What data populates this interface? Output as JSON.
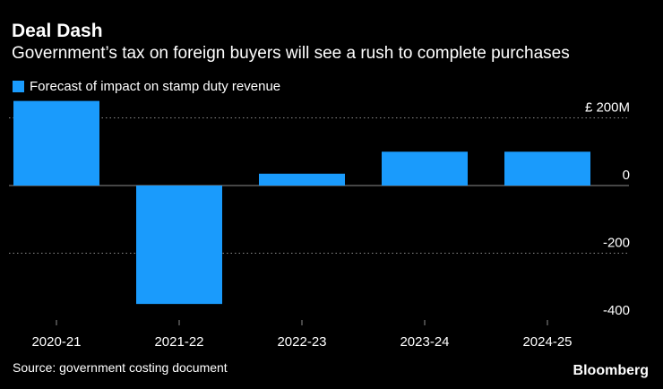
{
  "header": {
    "title": "Deal Dash",
    "subtitle": "Government’s tax on foreign buyers will see a rush to complete purchases"
  },
  "legend": {
    "label": "Forecast of impact on stamp duty revenue"
  },
  "footer": {
    "source": "Source: government costing document",
    "brand": "Bloomberg"
  },
  "colors": {
    "bar": "#1a9bfc",
    "background": "#000000",
    "text": "#ffffff",
    "grid": "#8c8c8c",
    "zero_line": "#8c8c8c",
    "tick": "#8c8c8c"
  },
  "chart_data": {
    "type": "bar",
    "title": "Deal Dash",
    "subtitle": "Government’s tax on foreign buyers will see a rush to complete purchases",
    "categories": [
      "2020-21",
      "2021-22",
      "2022-23",
      "2023-24",
      "2024-25"
    ],
    "series": [
      {
        "name": "Forecast of impact on stamp duty revenue",
        "values": [
          250,
          -350,
          35,
          100,
          100
        ]
      }
    ],
    "ylim": [
      -400,
      250
    ],
    "yticks": [
      200,
      0,
      -200,
      -400
    ],
    "ytick_labels": [
      "£ 200M",
      "0",
      "-200",
      "-400"
    ],
    "xlabel": "",
    "ylabel": "",
    "grid": true,
    "legend_position": "top-left",
    "axis_position": "right"
  }
}
